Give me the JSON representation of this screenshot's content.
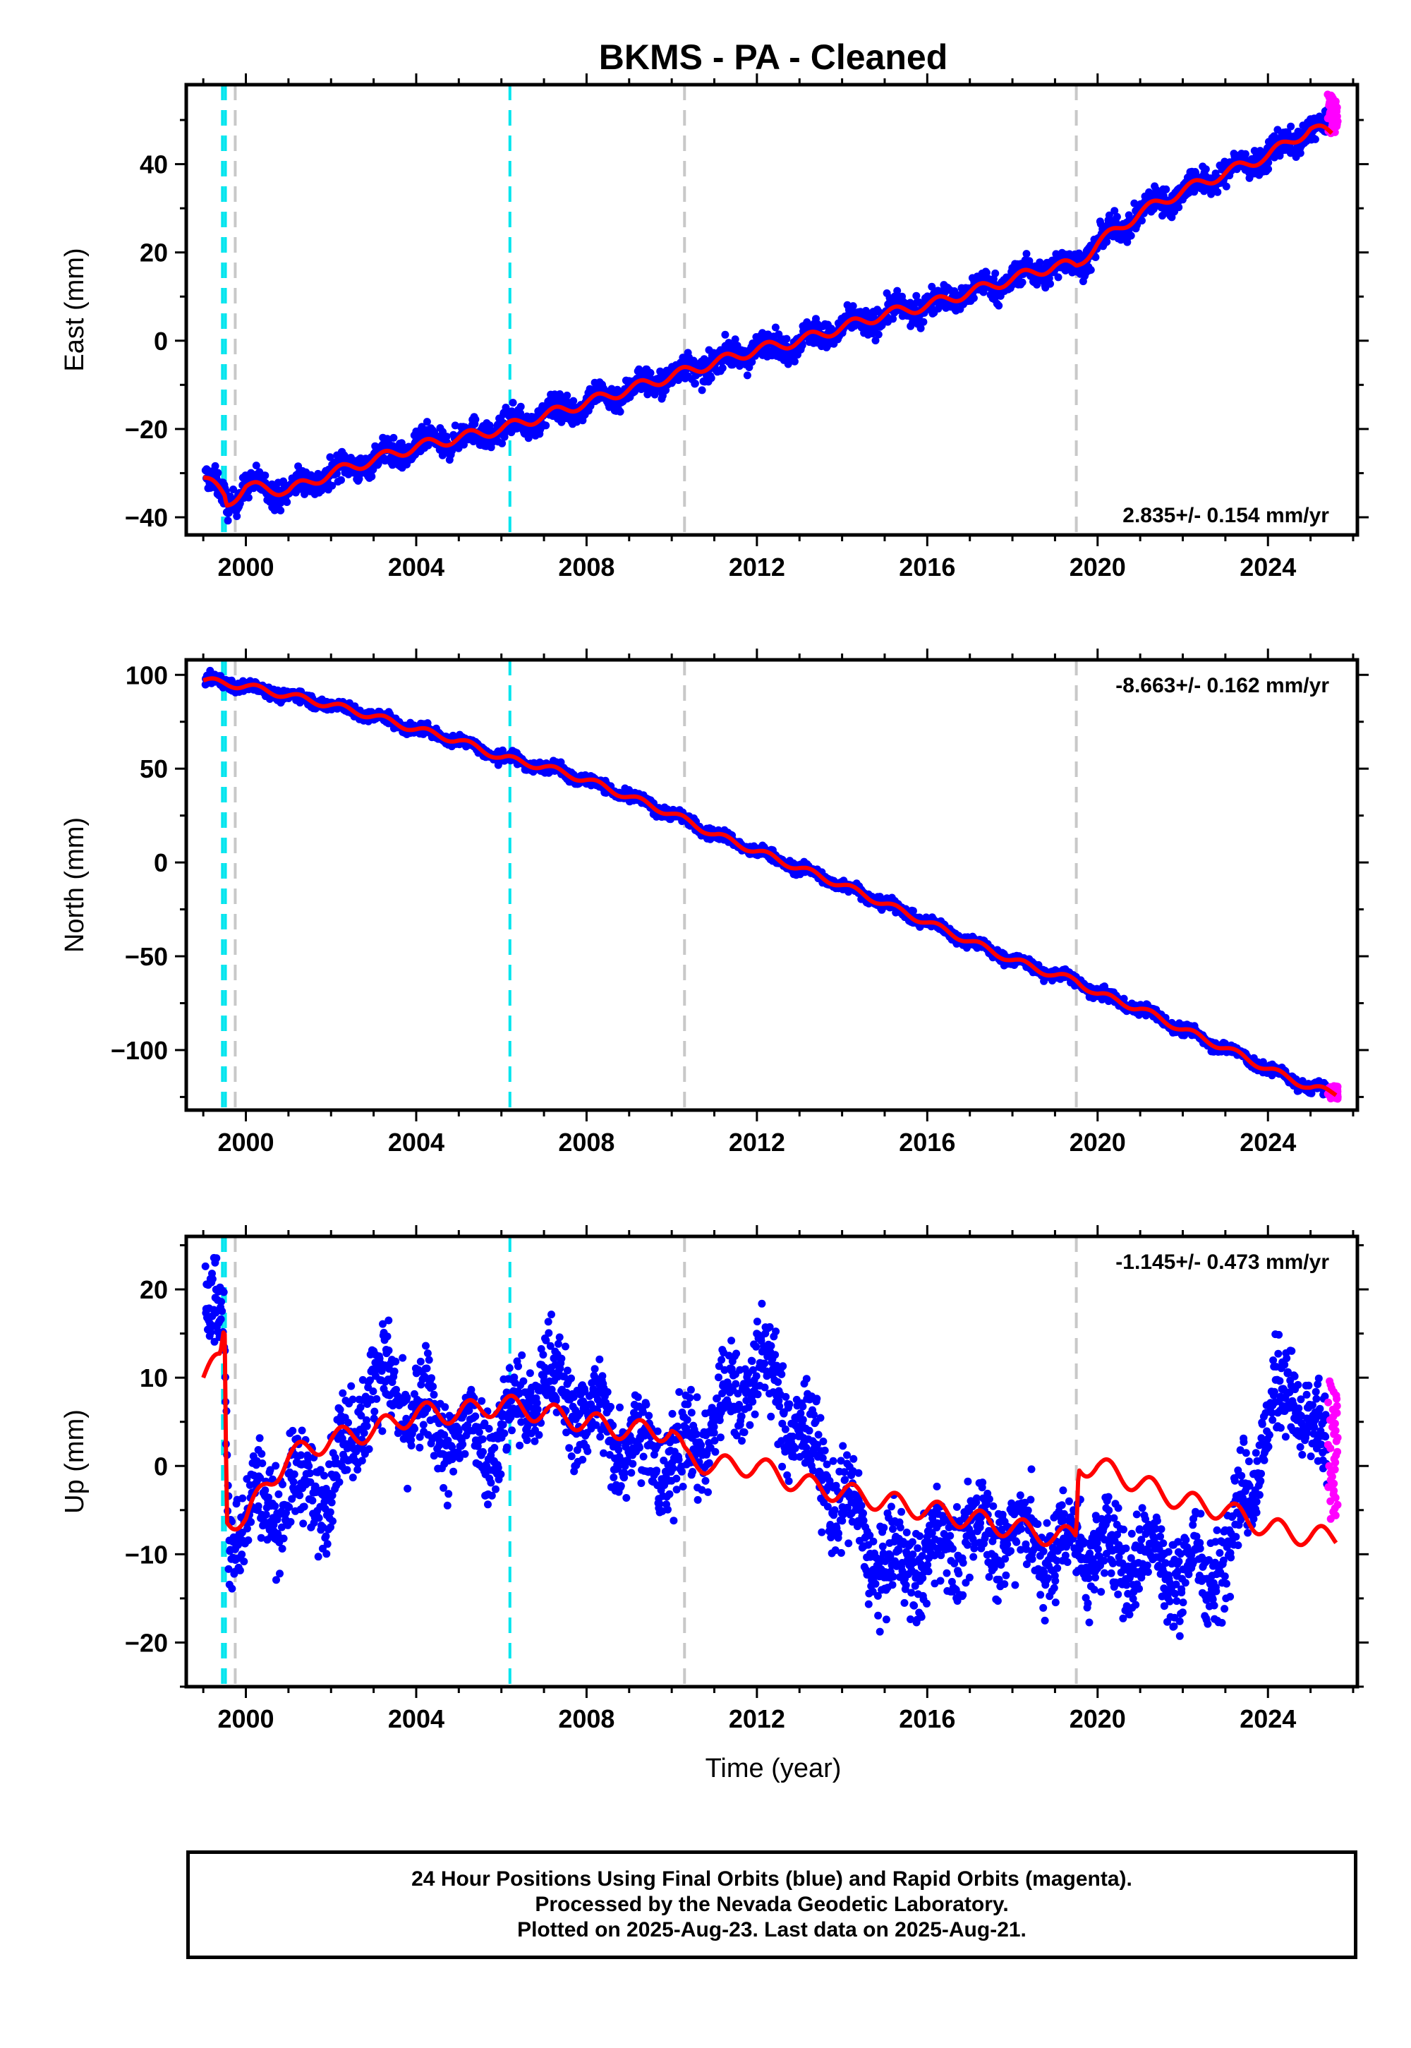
{
  "title": "BKMS  - PA - Cleaned",
  "xlabel": "Time (year)",
  "footer": {
    "line1": "24 Hour Positions Using Final Orbits (blue) and Rapid Orbits (magenta).",
    "line2": "Processed by the Nevada Geodetic Laboratory.",
    "line3": "Plotted on 2025-Aug-23. Last data on 2025-Aug-21."
  },
  "colors": {
    "final": "#0000ff",
    "rapid": "#ff00ff",
    "model": "#ff0000",
    "antenna_change": "#00e5ee",
    "equipment_change": "#c8c8c8"
  },
  "chart_data": [
    {
      "type": "scatter",
      "component": "east",
      "ylabel": "East (mm)",
      "rate": "2.835+/- 0.154 mm/yr",
      "rate_position": "bottom-right",
      "xlim": [
        1998.6,
        2026.1
      ],
      "ylim": [
        -44,
        58
      ],
      "xticks": [
        2000,
        2004,
        2008,
        2012,
        2016,
        2020,
        2024
      ],
      "yticks": [
        -40,
        -20,
        0,
        20,
        40
      ],
      "antenna_change_lines": [
        1999.45,
        1999.52,
        2006.2
      ],
      "equipment_change_lines": [
        1999.75,
        2010.3,
        2019.5
      ],
      "trend": [
        [
          1999.0,
          -31
        ],
        [
          1999.5,
          -35
        ],
        [
          1999.55,
          -37
        ],
        [
          2000,
          -33
        ],
        [
          2001,
          -34
        ],
        [
          2002,
          -30
        ],
        [
          2003,
          -27
        ],
        [
          2004,
          -24
        ],
        [
          2005,
          -22
        ],
        [
          2006,
          -20
        ],
        [
          2007,
          -17
        ],
        [
          2008,
          -14
        ],
        [
          2009,
          -11
        ],
        [
          2010,
          -8
        ],
        [
          2011,
          -5
        ],
        [
          2012,
          -2
        ],
        [
          2013,
          0
        ],
        [
          2014,
          3
        ],
        [
          2015,
          6
        ],
        [
          2016,
          8
        ],
        [
          2017,
          11
        ],
        [
          2018,
          14
        ],
        [
          2019,
          17
        ],
        [
          2019.5,
          17
        ],
        [
          2020,
          22
        ],
        [
          2021,
          29
        ],
        [
          2022,
          34
        ],
        [
          2023,
          38
        ],
        [
          2024,
          42
        ],
        [
          2025,
          48
        ],
        [
          2025.5,
          47
        ]
      ],
      "scatter_spread": 2.5,
      "rapid": {
        "x_range": [
          2025.4,
          2025.64
        ],
        "y_range": [
          47,
          56
        ]
      }
    },
    {
      "type": "scatter",
      "component": "north",
      "ylabel": "North (mm)",
      "rate": "-8.663+/- 0.162 mm/yr",
      "rate_position": "top-right",
      "xlim": [
        1998.6,
        2026.1
      ],
      "ylim": [
        -132,
        108
      ],
      "xticks": [
        2000,
        2004,
        2008,
        2012,
        2016,
        2020,
        2024
      ],
      "yticks": [
        -100,
        -50,
        0,
        50,
        100
      ],
      "antenna_change_lines": [
        1999.45,
        1999.52,
        2006.2
      ],
      "equipment_change_lines": [
        1999.75,
        2010.3,
        2019.5
      ],
      "trend": [
        [
          1999.0,
          97
        ],
        [
          2000,
          94
        ],
        [
          2001,
          89
        ],
        [
          2002,
          84
        ],
        [
          2003,
          78
        ],
        [
          2004,
          71
        ],
        [
          2005,
          65
        ],
        [
          2006,
          56
        ],
        [
          2006.2,
          55
        ],
        [
          2007,
          51
        ],
        [
          2008,
          44
        ],
        [
          2009,
          35
        ],
        [
          2010,
          26
        ],
        [
          2011,
          15
        ],
        [
          2012,
          6
        ],
        [
          2013,
          -3
        ],
        [
          2014,
          -12
        ],
        [
          2015,
          -22
        ],
        [
          2016,
          -32
        ],
        [
          2017,
          -42
        ],
        [
          2018,
          -52
        ],
        [
          2019,
          -60
        ],
        [
          2019.5,
          -63
        ],
        [
          2020,
          -70
        ],
        [
          2021,
          -78
        ],
        [
          2022,
          -89
        ],
        [
          2023,
          -99
        ],
        [
          2024,
          -110
        ],
        [
          2025,
          -120
        ],
        [
          2025.6,
          -123
        ]
      ],
      "scatter_spread": 2.5,
      "rapid": {
        "x_range": [
          2025.4,
          2025.64
        ],
        "y_range": [
          -126,
          -119
        ]
      }
    },
    {
      "type": "scatter",
      "component": "up",
      "ylabel": "Up (mm)",
      "rate": "-1.145+/- 0.473 mm/yr",
      "rate_position": "top-right",
      "xlim": [
        1998.6,
        2026.1
      ],
      "ylim": [
        -25,
        26
      ],
      "xticks": [
        2000,
        2004,
        2008,
        2012,
        2016,
        2020,
        2024
      ],
      "yticks": [
        -20,
        -10,
        0,
        10,
        20
      ],
      "antenna_change_lines": [
        1999.45,
        1999.52,
        2006.2
      ],
      "equipment_change_lines": [
        1999.75,
        2010.3,
        2019.5
      ],
      "trend": [
        [
          1999.0,
          10
        ],
        [
          1999.4,
          12
        ],
        [
          1999.5,
          16
        ],
        [
          1999.55,
          -6
        ],
        [
          2000,
          -6
        ],
        [
          2000.5,
          -2
        ],
        [
          2001,
          1
        ],
        [
          2002,
          3
        ],
        [
          2003,
          4
        ],
        [
          2003.5,
          5
        ],
        [
          2004,
          6
        ],
        [
          2005,
          6
        ],
        [
          2006,
          7
        ],
        [
          2007,
          6
        ],
        [
          2008,
          5
        ],
        [
          2009,
          4
        ],
        [
          2010,
          4
        ],
        [
          2010.3,
          1
        ],
        [
          2011,
          0
        ],
        [
          2012,
          0
        ],
        [
          2013,
          -2
        ],
        [
          2014,
          -3
        ],
        [
          2015,
          -4
        ],
        [
          2016,
          -5
        ],
        [
          2017,
          -6
        ],
        [
          2018,
          -7
        ],
        [
          2019,
          -8
        ],
        [
          2019.5,
          -8
        ],
        [
          2019.55,
          0
        ],
        [
          2020,
          0
        ],
        [
          2021,
          -2
        ],
        [
          2022,
          -4
        ],
        [
          2023,
          -5
        ],
        [
          2024,
          -7
        ],
        [
          2025,
          -8
        ],
        [
          2025.6,
          -8
        ]
      ],
      "data_envelope": [
        [
          1999.0,
          18
        ],
        [
          1999.5,
          15
        ],
        [
          1999.6,
          -8
        ],
        [
          2000,
          -5
        ],
        [
          2001,
          -3
        ],
        [
          2002,
          -2
        ],
        [
          2003,
          10
        ],
        [
          2004,
          6
        ],
        [
          2005,
          3
        ],
        [
          2006,
          4
        ],
        [
          2007,
          10
        ],
        [
          2008,
          6
        ],
        [
          2009,
          3
        ],
        [
          2010,
          0
        ],
        [
          2011,
          5
        ],
        [
          2012,
          12
        ],
        [
          2013,
          4
        ],
        [
          2014,
          -4
        ],
        [
          2015,
          -12
        ],
        [
          2016,
          -10
        ],
        [
          2017,
          -8
        ],
        [
          2018,
          -7
        ],
        [
          2019,
          -10
        ],
        [
          2019.5,
          -8
        ],
        [
          2020,
          -10
        ],
        [
          2021,
          -10
        ],
        [
          2022,
          -12
        ],
        [
          2022.5,
          -12
        ],
        [
          2023,
          -10
        ],
        [
          2024,
          5
        ],
        [
          2024.5,
          9
        ],
        [
          2025,
          5
        ],
        [
          2025.6,
          -3
        ]
      ],
      "scatter_spread": 4.5,
      "rapid": {
        "x_range": [
          2025.4,
          2025.64
        ],
        "y_range": [
          -6,
          10
        ]
      }
    }
  ]
}
